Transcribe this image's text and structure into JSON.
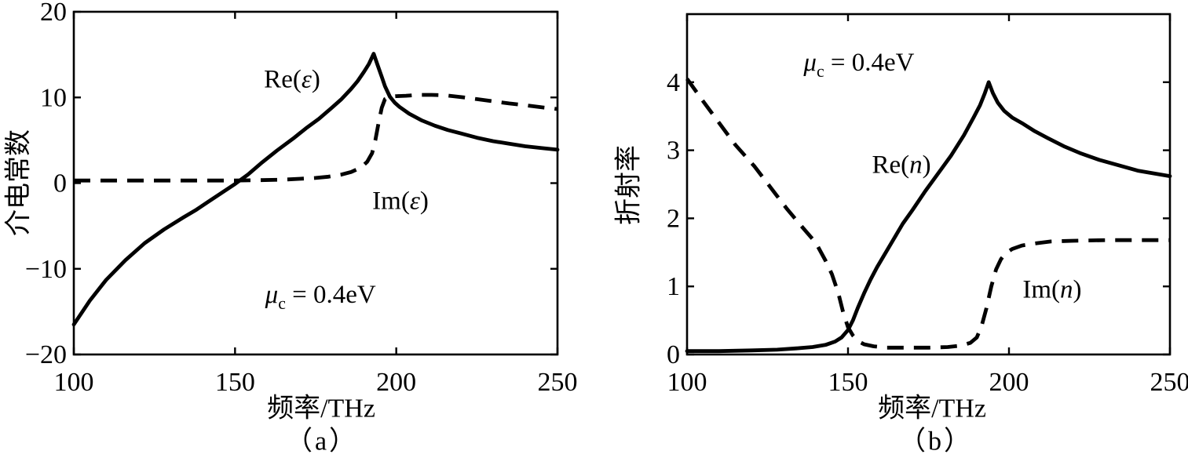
{
  "figure": {
    "background": "#ffffff",
    "ink": "#000000"
  },
  "chart_data": [
    {
      "type": "line",
      "panel": "a",
      "caption": "（a）",
      "xlabel": "频率/THz",
      "ylabel": "介电常数",
      "xlim": [
        100,
        250
      ],
      "ylim": [
        -20,
        20
      ],
      "x_ticks": [
        100,
        150,
        200,
        250
      ],
      "y_ticks": [
        -20,
        -10,
        0,
        10,
        20
      ],
      "grid": false,
      "legend_position": "inline-labels",
      "annotation": {
        "symbol": "μ",
        "subscript": "c",
        "text": " = 0.4eV",
        "pos": [
          176.5,
          -13.3
        ]
      },
      "series": [
        {
          "name": "Re(ε)",
          "line": "solid",
          "label": {
            "prefix": "Re(",
            "symbol": "ε",
            "suffix": ")",
            "pos": [
              167.7,
              12.0
            ]
          },
          "points": [
            [
              100,
              -16.5
            ],
            [
              105,
              -13.7
            ],
            [
              110,
              -11.3
            ],
            [
              116,
              -9.0
            ],
            [
              122,
              -7.0
            ],
            [
              128,
              -5.4
            ],
            [
              134,
              -4.0
            ],
            [
              138,
              -3.1
            ],
            [
              142,
              -2.1
            ],
            [
              146,
              -1.1
            ],
            [
              150,
              -0.1
            ],
            [
              154,
              1.0
            ],
            [
              158,
              2.3
            ],
            [
              163,
              3.8
            ],
            [
              168,
              5.2
            ],
            [
              172,
              6.4
            ],
            [
              176,
              7.5
            ],
            [
              180,
              8.8
            ],
            [
              183,
              9.8
            ],
            [
              186,
              11.0
            ],
            [
              188,
              11.9
            ],
            [
              190,
              13.0
            ],
            [
              191.5,
              13.9
            ],
            [
              193,
              15.1
            ],
            [
              194.2,
              13.8
            ],
            [
              195.5,
              12.4
            ],
            [
              196.5,
              11.3
            ],
            [
              198,
              10.1
            ],
            [
              199.5,
              9.4
            ],
            [
              201,
              8.9
            ],
            [
              204,
              8.1
            ],
            [
              208,
              7.3
            ],
            [
              212,
              6.7
            ],
            [
              216,
              6.2
            ],
            [
              220,
              5.8
            ],
            [
              225,
              5.3
            ],
            [
              230,
              4.9
            ],
            [
              235,
              4.6
            ],
            [
              240,
              4.3
            ],
            [
              245,
              4.1
            ],
            [
              250,
              3.9
            ]
          ]
        },
        {
          "name": "Im(ε)",
          "line": "dashed",
          "label": {
            "prefix": "Im(",
            "symbol": "ε",
            "suffix": ")",
            "pos": [
              201.3,
              -2.15
            ]
          },
          "points": [
            [
              100,
              0.3
            ],
            [
              110,
              0.3
            ],
            [
              120,
              0.3
            ],
            [
              130,
              0.3
            ],
            [
              140,
              0.3
            ],
            [
              150,
              0.3
            ],
            [
              158,
              0.35
            ],
            [
              165,
              0.4
            ],
            [
              170,
              0.5
            ],
            [
              175,
              0.6
            ],
            [
              179,
              0.75
            ],
            [
              183,
              1.0
            ],
            [
              186,
              1.3
            ],
            [
              189,
              1.8
            ],
            [
              191,
              2.5
            ],
            [
              192.5,
              3.5
            ],
            [
              193.5,
              5.0
            ],
            [
              194.5,
              7.0
            ],
            [
              195.5,
              8.8
            ],
            [
              196.5,
              9.8
            ],
            [
              198,
              10.1
            ],
            [
              200,
              10.15
            ],
            [
              203,
              10.2
            ],
            [
              207,
              10.3
            ],
            [
              211,
              10.3
            ],
            [
              215,
              10.25
            ],
            [
              220,
              10.05
            ],
            [
              225,
              9.8
            ],
            [
              230,
              9.55
            ],
            [
              235,
              9.3
            ],
            [
              240,
              9.1
            ],
            [
              245,
              8.85
            ],
            [
              250,
              8.65
            ]
          ]
        }
      ]
    },
    {
      "type": "line",
      "panel": "b",
      "caption": "（b）",
      "xlabel": "频率/THz",
      "ylabel": "折射率",
      "xlim": [
        100,
        250
      ],
      "ylim": [
        0,
        5
      ],
      "x_ticks": [
        100,
        150,
        200,
        250
      ],
      "y_ticks": [
        0,
        1,
        2,
        3,
        4
      ],
      "grid": false,
      "legend_position": "inline-labels",
      "annotation": {
        "symbol": "μ",
        "subscript": "c",
        "text": " = 0.4eV",
        "pos": [
          153.4,
          4.25
        ]
      },
      "series": [
        {
          "name": "Re(n)",
          "line": "solid",
          "label": {
            "prefix": "Re(",
            "symbol": "n",
            "suffix": ")",
            "pos": [
              166.6,
              2.78
            ]
          },
          "points": [
            [
              100,
              0.05
            ],
            [
              110,
              0.05
            ],
            [
              120,
              0.06
            ],
            [
              128,
              0.07
            ],
            [
              134,
              0.09
            ],
            [
              139,
              0.11
            ],
            [
              143,
              0.14
            ],
            [
              146,
              0.19
            ],
            [
              148,
              0.25
            ],
            [
              150,
              0.36
            ],
            [
              151.5,
              0.5
            ],
            [
              153,
              0.68
            ],
            [
              155,
              0.9
            ],
            [
              157,
              1.1
            ],
            [
              159,
              1.28
            ],
            [
              161,
              1.44
            ],
            [
              164,
              1.68
            ],
            [
              167,
              1.92
            ],
            [
              170,
              2.12
            ],
            [
              174,
              2.4
            ],
            [
              178,
              2.66
            ],
            [
              182,
              2.92
            ],
            [
              186,
              3.22
            ],
            [
              189,
              3.48
            ],
            [
              191,
              3.66
            ],
            [
              192.5,
              3.84
            ],
            [
              193.7,
              4.0
            ],
            [
              195,
              3.84
            ],
            [
              196.5,
              3.7
            ],
            [
              198.5,
              3.58
            ],
            [
              201,
              3.48
            ],
            [
              204,
              3.4
            ],
            [
              208,
              3.28
            ],
            [
              212,
              3.18
            ],
            [
              217,
              3.06
            ],
            [
              222,
              2.96
            ],
            [
              228,
              2.86
            ],
            [
              234,
              2.78
            ],
            [
              240,
              2.7
            ],
            [
              245,
              2.66
            ],
            [
              250,
              2.62
            ]
          ]
        },
        {
          "name": "Im(n)",
          "line": "dashed",
          "label": {
            "prefix": "Im(",
            "symbol": "n",
            "suffix": ")",
            "pos": [
              213.4,
              0.94
            ]
          },
          "points": [
            [
              100,
              4.05
            ],
            [
              105,
              3.72
            ],
            [
              110,
              3.4
            ],
            [
              115,
              3.08
            ],
            [
              121,
              2.76
            ],
            [
              126,
              2.45
            ],
            [
              131,
              2.14
            ],
            [
              136,
              1.86
            ],
            [
              140,
              1.64
            ],
            [
              143,
              1.38
            ],
            [
              145,
              1.18
            ],
            [
              147,
              0.9
            ],
            [
              148.5,
              0.62
            ],
            [
              150,
              0.4
            ],
            [
              151.5,
              0.28
            ],
            [
              153,
              0.2
            ],
            [
              155,
              0.15
            ],
            [
              158,
              0.12
            ],
            [
              162,
              0.1
            ],
            [
              168,
              0.1
            ],
            [
              175,
              0.1
            ],
            [
              181,
              0.11
            ],
            [
              185,
              0.13
            ],
            [
              188,
              0.17
            ],
            [
              190,
              0.25
            ],
            [
              191.5,
              0.42
            ],
            [
              193,
              0.68
            ],
            [
              194.5,
              1.0
            ],
            [
              196,
              1.25
            ],
            [
              197.5,
              1.4
            ],
            [
              199,
              1.49
            ],
            [
              201,
              1.55
            ],
            [
              204,
              1.6
            ],
            [
              208,
              1.63
            ],
            [
              213,
              1.66
            ],
            [
              220,
              1.67
            ],
            [
              230,
              1.68
            ],
            [
              240,
              1.68
            ],
            [
              250,
              1.68
            ]
          ]
        }
      ]
    }
  ]
}
